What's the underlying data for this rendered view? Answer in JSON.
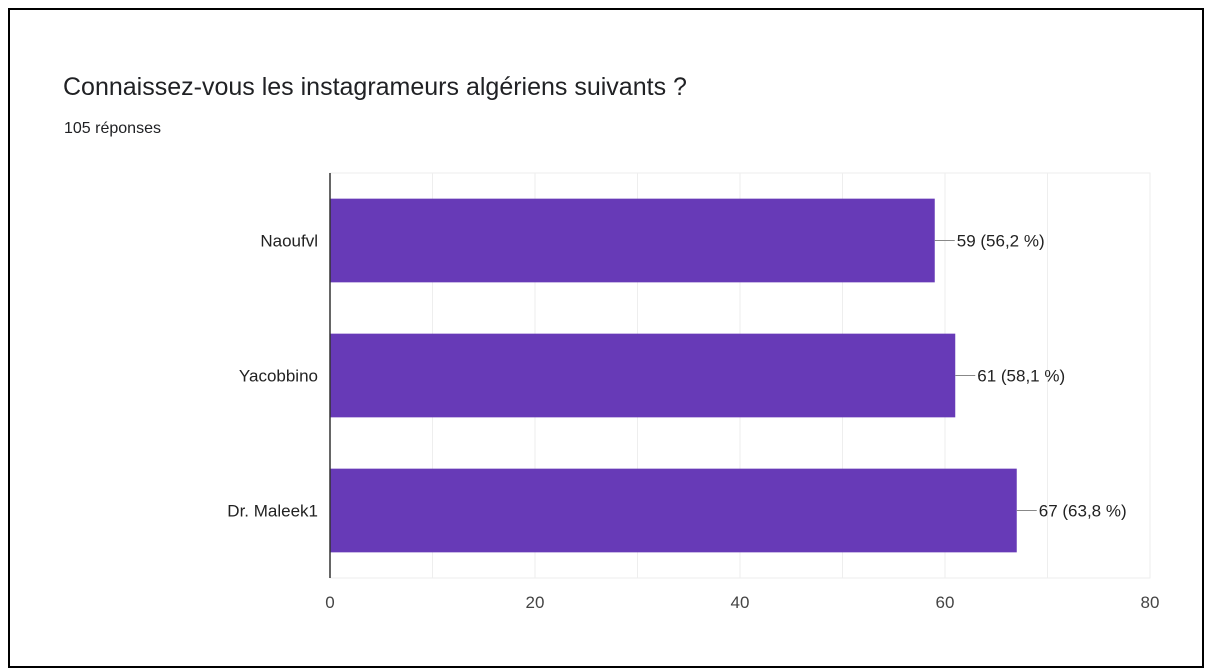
{
  "header": {
    "title": "Connaissez-vous les instagrameurs algériens suivants ?",
    "responses": "105 réponses"
  },
  "colors": {
    "bar": "#673AB7",
    "axis": "#333333",
    "grid": "#eeeeee"
  },
  "chart_data": {
    "type": "bar",
    "orientation": "horizontal",
    "title": "Connaissez-vous les instagrameurs algériens suivants ?",
    "subtitle": "105 réponses",
    "categories": [
      "Naoufvl",
      "Yacobbino",
      "Dr. Maleek1"
    ],
    "values": [
      59,
      61,
      67
    ],
    "data_labels": [
      "59 (56,2 %)",
      "61 (58,1 %)",
      "67 (63,8 %)"
    ],
    "xlim": [
      0,
      80
    ],
    "xticks": [
      0,
      20,
      40,
      60,
      80
    ],
    "grid": true,
    "legend": "none"
  }
}
